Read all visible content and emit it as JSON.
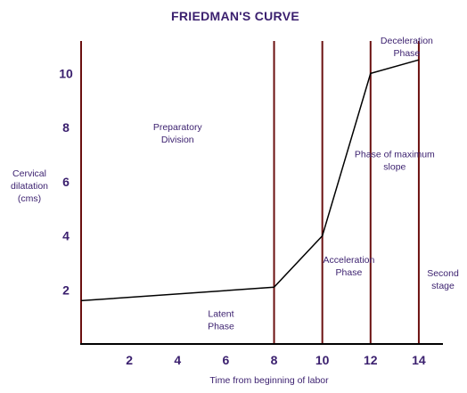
{
  "chart_data": {
    "type": "line",
    "title": "FRIEDMAN'S CURVE",
    "xlabel": "Time from beginning of labor",
    "ylabel_lines": [
      "Cervical",
      "dilatation",
      "(cms)"
    ],
    "xlim": [
      0,
      15
    ],
    "ylim": [
      0,
      11.2
    ],
    "x_ticks": [
      2,
      4,
      6,
      8,
      10,
      12,
      14
    ],
    "y_ticks": [
      2,
      4,
      6,
      8,
      10
    ],
    "grid": false,
    "series": [
      {
        "x": [
          0,
          8,
          10,
          12,
          14
        ],
        "y": [
          1.6,
          2.1,
          4.0,
          10.0,
          10.5
        ]
      }
    ],
    "phase_boundaries": [
      0,
      8,
      10,
      12,
      14
    ],
    "line_color": "#000000",
    "boundary_color": "#6b1010",
    "text_color": "#3a1f6e",
    "annotations": [
      {
        "lines": [
          "Preparatory",
          "Division"
        ],
        "x": 4.0,
        "y": 7.9
      },
      {
        "lines": [
          "Latent",
          "Phase"
        ],
        "x": 5.8,
        "y": 1.0
      },
      {
        "lines": [
          "Acceleration",
          "Phase"
        ],
        "x": 11.1,
        "y": 3.0
      },
      {
        "lines": [
          "Phase of maximum",
          "slope"
        ],
        "x": 13.0,
        "y": 6.9
      },
      {
        "lines": [
          "Deceleration",
          "Phase"
        ],
        "x": 13.5,
        "y": 11.1
      },
      {
        "lines": [
          "Second",
          "stage"
        ],
        "x": 15.0,
        "y": 2.5
      }
    ]
  }
}
